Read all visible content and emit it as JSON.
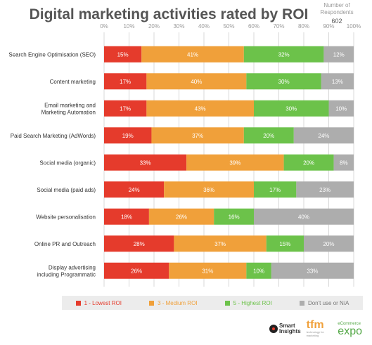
{
  "title": "Digital marketing activities rated by ROI",
  "respondents": {
    "label_line1": "Number of",
    "label_line2": "Respondents",
    "value": "602"
  },
  "colors": {
    "lowest": "#e53b2c",
    "medium": "#f0a03a",
    "highest": "#6cc24a",
    "dontuse": "#adadad",
    "axis_text": "#999999",
    "label_text": "#333333",
    "grid": "#d8d8d8"
  },
  "logos": {
    "smart_insights": [
      "Smart",
      "Insights"
    ],
    "tfm": "tfm",
    "tfm_sub": "technology for marketing",
    "expo_top": "eCommerce",
    "expo": "expo"
  },
  "chart_data": {
    "type": "bar",
    "orientation": "horizontal",
    "stacked": true,
    "title": "Digital marketing activities rated by ROI",
    "xlim": [
      0,
      100
    ],
    "x_ticks": [
      "0%",
      "10%",
      "20%",
      "30%",
      "40%",
      "50%",
      "60%",
      "70%",
      "80%",
      "90%",
      "100%"
    ],
    "grid": true,
    "legend_position": "bottom",
    "categories": [
      [
        "Search Engine Optimisation (SEO)"
      ],
      [
        "Content marketing"
      ],
      [
        "Email marketing and",
        "Marketing Automation"
      ],
      [
        "Paid Search Marketing (AdWords)"
      ],
      [
        "Social media (organic)"
      ],
      [
        "Social media (paid ads)"
      ],
      [
        "Website personalisation"
      ],
      [
        "Online PR and Outreach"
      ],
      [
        "Display advertising",
        "including Programmatic"
      ]
    ],
    "series": [
      {
        "name": "1 - Lowest ROI",
        "color_key": "lowest",
        "values": [
          15,
          17,
          17,
          19,
          33,
          24,
          18,
          28,
          26
        ]
      },
      {
        "name": "3 - Medium ROI",
        "color_key": "medium",
        "values": [
          41,
          40,
          43,
          37,
          39,
          36,
          26,
          37,
          31
        ]
      },
      {
        "name": "5 - Highest ROI",
        "color_key": "highest",
        "values": [
          32,
          30,
          30,
          20,
          20,
          17,
          16,
          15,
          10
        ]
      },
      {
        "name": "Don't use or N/A",
        "color_key": "dontuse",
        "values": [
          12,
          13,
          10,
          24,
          8,
          23,
          40,
          20,
          33
        ]
      }
    ]
  }
}
